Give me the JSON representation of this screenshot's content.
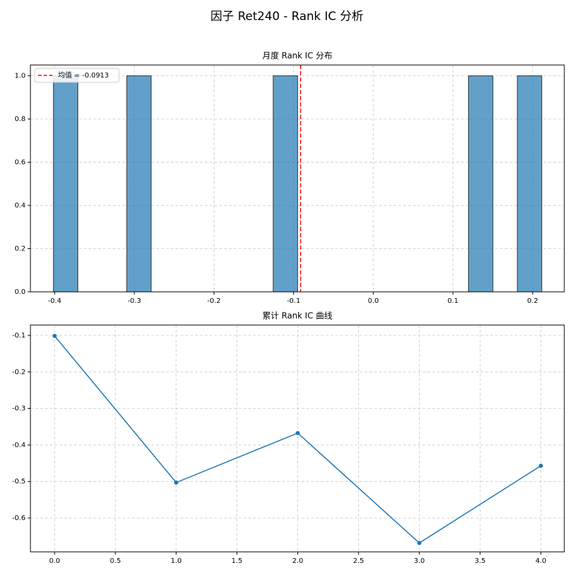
{
  "title": "因子 Ret240 - Rank IC 分析",
  "chart_data": [
    {
      "type": "histogram",
      "title": "月度 Rank IC 分布",
      "bins": [
        -0.4015,
        -0.37085,
        -0.3402,
        -0.30955,
        -0.2789,
        -0.24825,
        -0.2176,
        -0.18695,
        -0.1563,
        -0.12565,
        -0.095,
        -0.06435,
        -0.0337,
        -0.00305,
        0.0276,
        0.05825,
        0.0889,
        0.11955,
        0.1502,
        0.18085,
        0.2115
      ],
      "counts": [
        1,
        0,
        0,
        1,
        0,
        0,
        0,
        0,
        0,
        1,
        0,
        0,
        0,
        0,
        0,
        0,
        0,
        1,
        0,
        1
      ],
      "color": "#1f77b4",
      "edgecolor": "#333333",
      "mean": {
        "name": "均值 = -0.0913",
        "value": -0.0913,
        "color": "#ff0000"
      },
      "xlim": [
        -0.4304,
        0.2398
      ],
      "ylim": [
        0,
        1.05
      ],
      "xticks": [
        -0.4,
        -0.3,
        -0.2,
        -0.1,
        {
          "value": 0,
          "label": "0.0"
        },
        0.1,
        0.2
      ],
      "yticks": [
        {
          "value": 0,
          "label": "0.0"
        },
        {
          "value": 0.2,
          "label": "0.2"
        },
        {
          "value": 0.4,
          "label": "0.4"
        },
        {
          "value": 0.6,
          "label": "0.6"
        },
        {
          "value": 0.8,
          "label": "0.8"
        },
        {
          "value": 1,
          "label": "1.0"
        }
      ],
      "grid": true,
      "legend": "upper-left"
    },
    {
      "type": "line",
      "title": "累计 Rank IC 曲线",
      "x": [
        0,
        1,
        2,
        3,
        4
      ],
      "values": [
        -0.1015,
        -0.503,
        -0.3675,
        -0.6685,
        -0.457
      ],
      "color": "#1f77b4",
      "xlim": [
        -0.199,
        4.193
      ],
      "ylim": [
        -0.6928,
        -0.0716
      ],
      "xticks": [
        {
          "value": 0,
          "label": "0.0"
        },
        0.5,
        {
          "value": 1,
          "label": "1.0"
        },
        1.5,
        {
          "value": 2,
          "label": "2.0"
        },
        2.5,
        {
          "value": 3,
          "label": "3.0"
        },
        3.5,
        {
          "value": 4,
          "label": "4.0"
        }
      ],
      "yticks": [
        -0.1,
        -0.2,
        -0.3,
        -0.4,
        -0.5,
        -0.6
      ],
      "grid": true
    }
  ]
}
